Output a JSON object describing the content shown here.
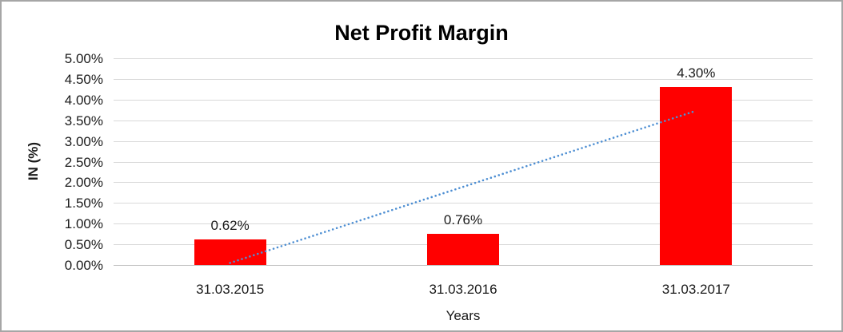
{
  "chart_data": {
    "type": "bar",
    "title": "Net Profit Margin",
    "xlabel": "Years",
    "ylabel": "IN (%)",
    "categories": [
      "31.03.2015",
      "31.03.2016",
      "31.03.2017"
    ],
    "values": [
      0.62,
      0.76,
      4.3
    ],
    "data_labels": [
      "0.62%",
      "0.76%",
      "4.30%"
    ],
    "y_tick_labels": [
      "0.00%",
      "0.50%",
      "1.00%",
      "1.50%",
      "2.00%",
      "2.50%",
      "3.00%",
      "3.50%",
      "4.00%",
      "4.50%",
      "5.00%"
    ],
    "y_tick_step": 0.5,
    "ylim": [
      0,
      5
    ],
    "grid": true,
    "legend": "none",
    "bar_color": "#FF0000",
    "gridline_color": "#D9D9D9",
    "axis_line_color": "#BFBFBF",
    "frame_border_color": "#A6A6A6",
    "trendline": {
      "type": "linear",
      "style": "dotted",
      "color": "#4E8FD3",
      "y_start": 0.05,
      "y_end": 3.73
    }
  }
}
